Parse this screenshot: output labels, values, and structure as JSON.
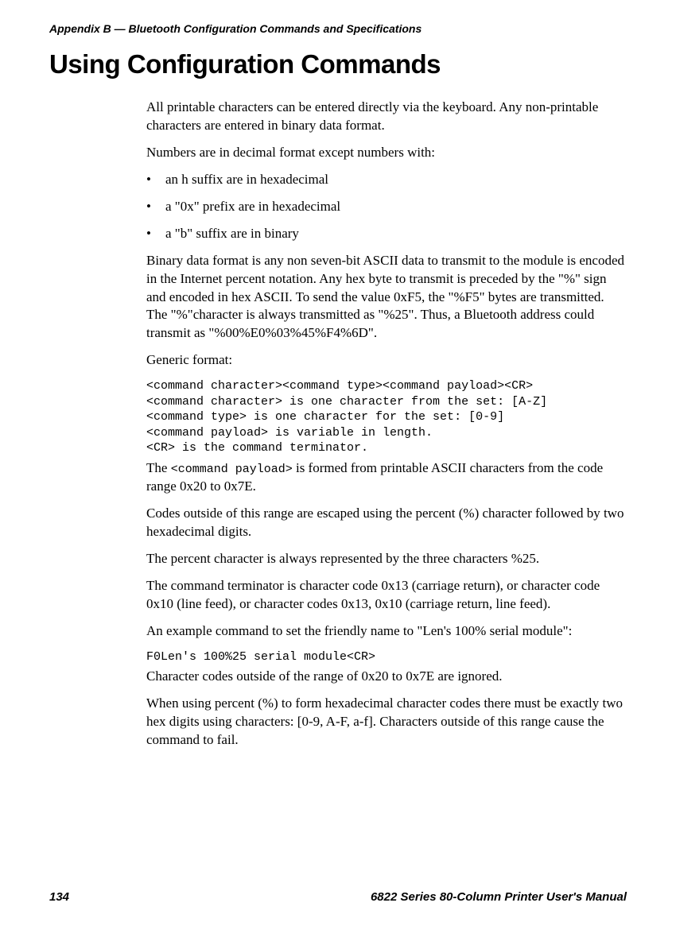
{
  "header": {
    "appendix_title": "Appendix B — Bluetooth Configuration Commands and Specifications"
  },
  "heading": "Using Configuration Commands",
  "paragraphs": {
    "p1": "All printable characters can be entered directly via the keyboard. Any non-printable characters are entered in binary data format.",
    "p2": "Numbers are in decimal format except numbers with:",
    "bullets": {
      "b1": "an h suffix are in hexadecimal",
      "b2": "a \"0x\" prefix are in hexadecimal",
      "b3": "a \"b\" suffix are in binary"
    },
    "p3": "Binary data format is any non seven-bit ASCII data to transmit to the module is encoded in the Internet percent notation. Any hex byte to transmit is preceded by the \"%\" sign and encoded in hex ASCII. To send the value 0xF5, the \"%F5\" bytes are transmitted. The \"%\"character is always transmitted as \"%25\". Thus, a Bluetooth address could transmit as \"%00%E0%03%45%F4%6D\".",
    "p4": "Generic format:",
    "code1": "<command character><command type><command payload><CR>\n<command character> is one character from the set: [A-Z]\n<command type> is one character for the set: [0-9]\n<command payload> is variable in length.\n<CR> is the command terminator.",
    "p5_pre": "The ",
    "p5_code": "<command payload>",
    "p5_post": " is formed from printable ASCII characters from the code range 0x20 to 0x7E.",
    "p6": "Codes outside of this range are escaped using the percent (%) character followed by two hexadecimal digits.",
    "p7": "The percent character is always represented by the three characters %25.",
    "p8": "The command terminator is character code 0x13 (carriage return), or character code 0x10 (line feed), or character codes 0x13, 0x10 (carriage return, line feed).",
    "p9": "An example command to set the friendly name to \"Len's 100% serial module\":",
    "code2": "F0Len's 100%25 serial module<CR>",
    "p10": "Character codes outside of the range of 0x20 to 0x7E are ignored.",
    "p11": "When using percent (%) to form hexadecimal character codes there must be exactly two hex digits using characters: [0-9, A-F, a-f]. Characters outside of this range cause the command to fail."
  },
  "footer": {
    "page_number": "134",
    "manual_title": "6822 Series 80-Column Printer User's Manual"
  }
}
